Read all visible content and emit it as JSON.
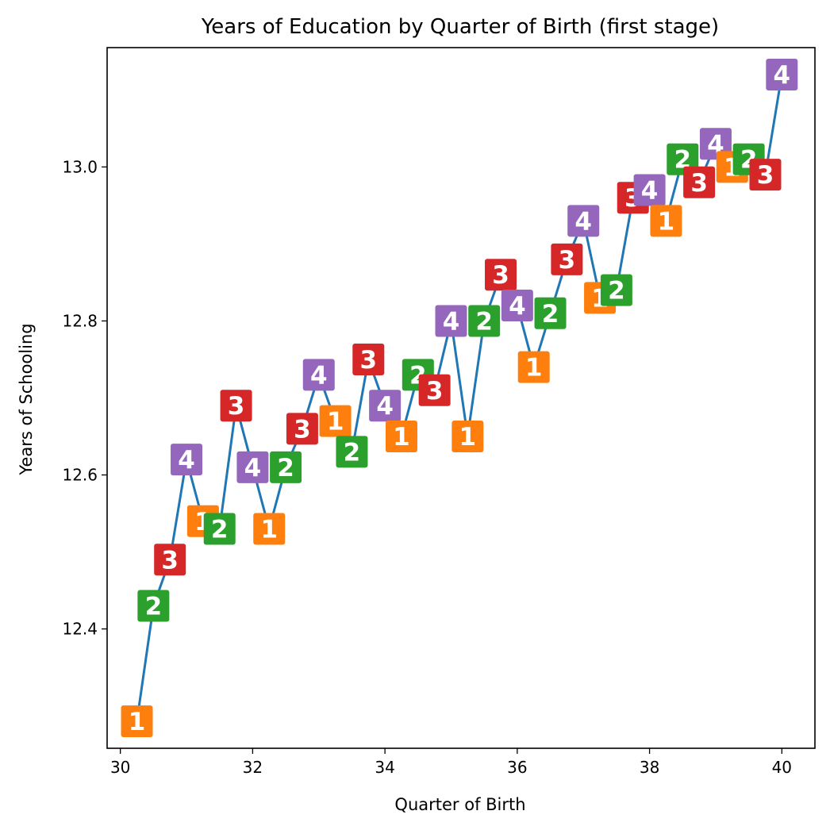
{
  "chart_data": {
    "type": "line",
    "title": "Years of Education by Quarter of Birth (first stage)",
    "xlabel": "Quarter of Birth",
    "ylabel": "Years of Schooling",
    "xlim": [
      29.8,
      40.5
    ],
    "ylim": [
      12.245,
      13.155
    ],
    "xticks": [
      30,
      32,
      34,
      36,
      38,
      40
    ],
    "yticks": [
      12.4,
      12.6,
      12.8,
      13.0
    ],
    "xtick_labels": [
      "30",
      "32",
      "34",
      "36",
      "38",
      "40"
    ],
    "ytick_labels": [
      "12.4",
      "12.6",
      "12.8",
      "13.0"
    ],
    "grid": false,
    "line_color": "#1f77b4",
    "quarter_colors": {
      "1": "#ff7f0e",
      "2": "#2ca02c",
      "3": "#d62728",
      "4": "#9467bd"
    },
    "points": [
      {
        "x": 30.25,
        "y": 12.28,
        "q": "1"
      },
      {
        "x": 30.5,
        "y": 12.43,
        "q": "2"
      },
      {
        "x": 30.75,
        "y": 12.49,
        "q": "3"
      },
      {
        "x": 31.0,
        "y": 12.62,
        "q": "4"
      },
      {
        "x": 31.25,
        "y": 12.54,
        "q": "1"
      },
      {
        "x": 31.5,
        "y": 12.53,
        "q": "2"
      },
      {
        "x": 31.75,
        "y": 12.69,
        "q": "3"
      },
      {
        "x": 32.0,
        "y": 12.61,
        "q": "4"
      },
      {
        "x": 32.25,
        "y": 12.53,
        "q": "1"
      },
      {
        "x": 32.5,
        "y": 12.61,
        "q": "2"
      },
      {
        "x": 32.75,
        "y": 12.66,
        "q": "3"
      },
      {
        "x": 33.0,
        "y": 12.73,
        "q": "4"
      },
      {
        "x": 33.25,
        "y": 12.67,
        "q": "1"
      },
      {
        "x": 33.5,
        "y": 12.63,
        "q": "2"
      },
      {
        "x": 33.75,
        "y": 12.75,
        "q": "3"
      },
      {
        "x": 34.0,
        "y": 12.69,
        "q": "4"
      },
      {
        "x": 34.25,
        "y": 12.65,
        "q": "1"
      },
      {
        "x": 34.5,
        "y": 12.73,
        "q": "2"
      },
      {
        "x": 34.75,
        "y": 12.71,
        "q": "3"
      },
      {
        "x": 35.0,
        "y": 12.8,
        "q": "4"
      },
      {
        "x": 35.25,
        "y": 12.65,
        "q": "1"
      },
      {
        "x": 35.5,
        "y": 12.8,
        "q": "2"
      },
      {
        "x": 35.75,
        "y": 12.86,
        "q": "3"
      },
      {
        "x": 36.0,
        "y": 12.82,
        "q": "4"
      },
      {
        "x": 36.25,
        "y": 12.74,
        "q": "1"
      },
      {
        "x": 36.5,
        "y": 12.81,
        "q": "2"
      },
      {
        "x": 36.75,
        "y": 12.88,
        "q": "3"
      },
      {
        "x": 37.0,
        "y": 12.93,
        "q": "4"
      },
      {
        "x": 37.25,
        "y": 12.83,
        "q": "1"
      },
      {
        "x": 37.5,
        "y": 12.84,
        "q": "2"
      },
      {
        "x": 37.75,
        "y": 12.96,
        "q": "3"
      },
      {
        "x": 38.0,
        "y": 12.97,
        "q": "4"
      },
      {
        "x": 38.25,
        "y": 12.93,
        "q": "1"
      },
      {
        "x": 38.5,
        "y": 13.01,
        "q": "2"
      },
      {
        "x": 38.75,
        "y": 12.98,
        "q": "3"
      },
      {
        "x": 39.0,
        "y": 13.03,
        "q": "4"
      },
      {
        "x": 39.25,
        "y": 13.0,
        "q": "1"
      },
      {
        "x": 39.5,
        "y": 13.01,
        "q": "2"
      },
      {
        "x": 39.75,
        "y": 12.99,
        "q": "3"
      },
      {
        "x": 40.0,
        "y": 13.12,
        "q": "4"
      }
    ]
  }
}
